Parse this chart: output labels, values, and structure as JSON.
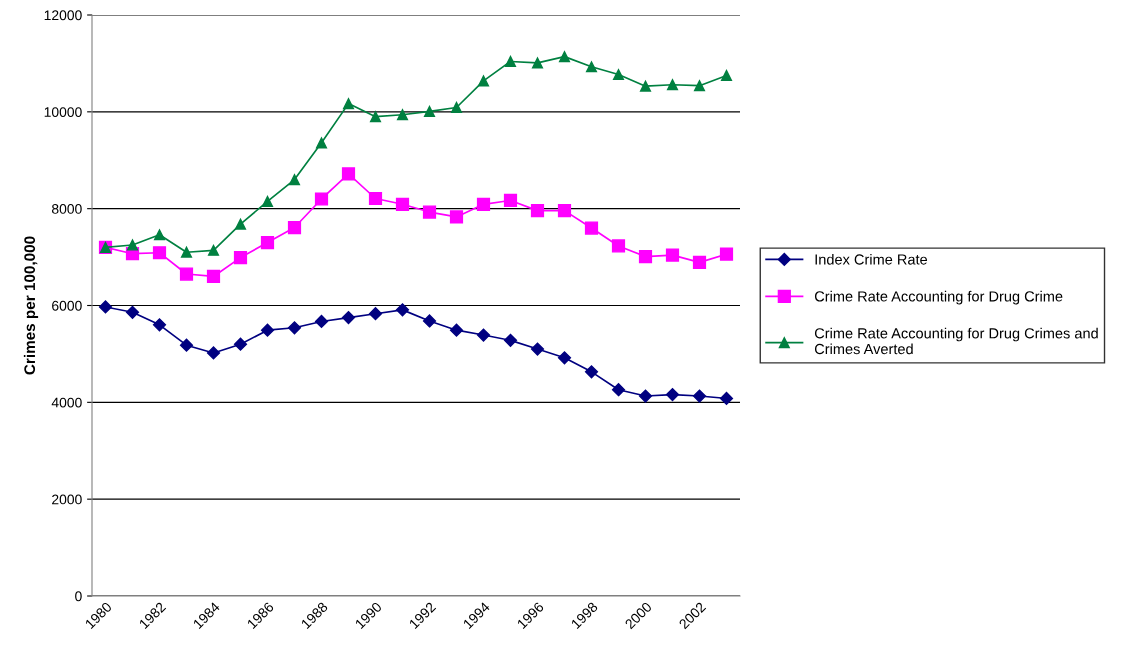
{
  "chart_data": {
    "type": "line",
    "ylabel": "Crimes per 100,000",
    "categories": [
      "1980",
      null,
      "1982",
      null,
      "1984",
      null,
      "1986",
      null,
      "1988",
      null,
      "1990",
      null,
      "1992",
      null,
      "1994",
      null,
      "1996",
      null,
      "1998",
      null,
      "2000",
      null,
      "2002",
      null
    ],
    "series": [
      {
        "name": "Index Crime Rate",
        "color": "#000080",
        "marker": "diamond",
        "values": [
          5970,
          5860,
          5600,
          5180,
          5020,
          5200,
          5490,
          5540,
          5670,
          5750,
          5830,
          5910,
          5680,
          5490,
          5390,
          5280,
          5100,
          4920,
          4630,
          4260,
          4130,
          4160,
          4130,
          4080
        ]
      },
      {
        "name": "Crime Rate Accounting for Drug Crime",
        "color": "#ff00ff",
        "marker": "square",
        "values": [
          7200,
          7070,
          7090,
          6650,
          6600,
          6990,
          7300,
          7610,
          8200,
          8720,
          8210,
          8090,
          7930,
          7830,
          8090,
          8170,
          7960,
          7960,
          7600,
          7230,
          7010,
          7040,
          6890,
          7060
        ]
      },
      {
        "name": "Crime Rate Accounting for Drug Crimes and Crimes Averted",
        "color": "#008040",
        "marker": "triangle",
        "values": [
          7200,
          7250,
          7460,
          7100,
          7140,
          7680,
          8150,
          8600,
          9360,
          10170,
          9900,
          9940,
          10010,
          10090,
          10640,
          11040,
          11010,
          11140,
          10930,
          10770,
          10530,
          10560,
          10540,
          10750
        ]
      }
    ],
    "ylim": [
      0,
      12000
    ],
    "yticks": [
      0,
      2000,
      4000,
      6000,
      8000,
      10000,
      12000
    ],
    "grid": "y",
    "legend": "right"
  }
}
